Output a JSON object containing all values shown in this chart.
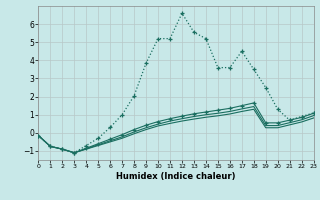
{
  "xlabel": "Humidex (Indice chaleur)",
  "background_color": "#c8e8e8",
  "grid_color": "#b8c8c8",
  "line_color": "#1a6e60",
  "xlim": [
    0,
    23
  ],
  "ylim": [
    -1.5,
    7.0
  ],
  "yticks": [
    -1,
    0,
    1,
    2,
    3,
    4,
    5,
    6
  ],
  "xticks": [
    0,
    1,
    2,
    3,
    4,
    5,
    6,
    7,
    8,
    9,
    10,
    11,
    12,
    13,
    14,
    15,
    16,
    17,
    18,
    19,
    20,
    21,
    22,
    23
  ],
  "series1_x": [
    0,
    1,
    2,
    3,
    4,
    5,
    6,
    7,
    8,
    9,
    10,
    11,
    12,
    13,
    14,
    15,
    16,
    17,
    18,
    19,
    20,
    21,
    22,
    23
  ],
  "series1_y": [
    -0.15,
    -0.75,
    -0.9,
    -1.1,
    -0.7,
    -0.3,
    0.3,
    1.0,
    2.05,
    3.85,
    5.2,
    5.2,
    6.6,
    5.55,
    5.2,
    3.6,
    3.6,
    4.5,
    3.5,
    2.5,
    1.3,
    0.7,
    0.9,
    1.1
  ],
  "series2_x": [
    0,
    1,
    2,
    3,
    4,
    5,
    6,
    7,
    8,
    9,
    10,
    11,
    12,
    13,
    14,
    15,
    16,
    17,
    18,
    19,
    20,
    21,
    22,
    23
  ],
  "series2_y": [
    -0.15,
    -0.75,
    -0.9,
    -1.1,
    -0.85,
    -0.6,
    -0.35,
    -0.1,
    0.18,
    0.42,
    0.62,
    0.78,
    0.92,
    1.05,
    1.15,
    1.25,
    1.35,
    1.5,
    1.65,
    0.55,
    0.55,
    0.7,
    0.85,
    1.08
  ],
  "series3_x": [
    0,
    1,
    2,
    3,
    4,
    5,
    6,
    7,
    8,
    9,
    10,
    11,
    12,
    13,
    14,
    15,
    16,
    17,
    18,
    19,
    20,
    21,
    22,
    23
  ],
  "series3_y": [
    -0.15,
    -0.75,
    -0.9,
    -1.1,
    -0.88,
    -0.66,
    -0.44,
    -0.22,
    0.05,
    0.28,
    0.48,
    0.65,
    0.78,
    0.9,
    1.0,
    1.08,
    1.18,
    1.32,
    1.45,
    0.4,
    0.4,
    0.56,
    0.72,
    0.95
  ],
  "series4_x": [
    0,
    1,
    2,
    3,
    4,
    5,
    6,
    7,
    8,
    9,
    10,
    11,
    12,
    13,
    14,
    15,
    16,
    17,
    18,
    19,
    20,
    21,
    22,
    23
  ],
  "series4_y": [
    -0.15,
    -0.75,
    -0.9,
    -1.1,
    -0.9,
    -0.7,
    -0.5,
    -0.3,
    -0.05,
    0.18,
    0.38,
    0.52,
    0.65,
    0.76,
    0.86,
    0.94,
    1.04,
    1.18,
    1.3,
    0.28,
    0.28,
    0.44,
    0.6,
    0.82
  ]
}
